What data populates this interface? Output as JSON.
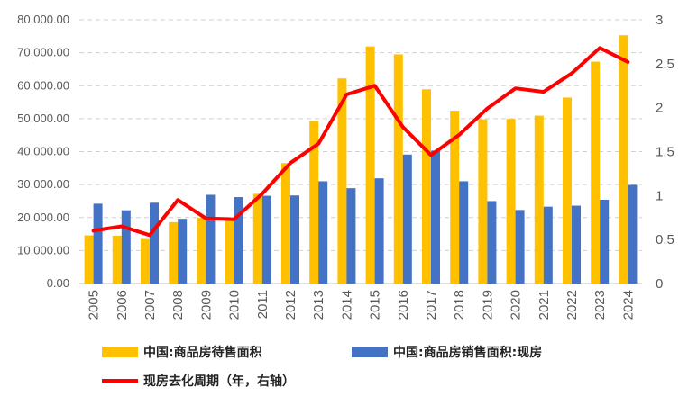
{
  "chart_data": {
    "type": "bar",
    "categories": [
      "2005",
      "2006",
      "2007",
      "2008",
      "2009",
      "2010",
      "2011",
      "2012",
      "2013",
      "2014",
      "2015",
      "2016",
      "2017",
      "2018",
      "2019",
      "2020",
      "2021",
      "2022",
      "2023",
      "2024"
    ],
    "series": [
      {
        "name": "中国:商品房待售面积",
        "type": "bar",
        "axis": "left",
        "color": "#FFC000",
        "values": [
          14600,
          14500,
          13500,
          18600,
          19900,
          19200,
          27200,
          36500,
          49300,
          62200,
          71900,
          69500,
          58900,
          52400,
          49800,
          49900,
          50900,
          56400,
          67300,
          75300
        ]
      },
      {
        "name": "中国:商品房销售面积:现房",
        "type": "bar",
        "axis": "left",
        "color": "#4472C4",
        "values": [
          24200,
          22200,
          24500,
          19600,
          26900,
          26200,
          26600,
          26700,
          31000,
          28900,
          31900,
          39100,
          40300,
          31000,
          25000,
          22300,
          23300,
          23600,
          25400,
          29900
        ]
      },
      {
        "name": "现房去化周期（年，右轴）",
        "type": "line",
        "axis": "right",
        "color": "#FF0000",
        "values": [
          0.6,
          0.65,
          0.55,
          0.95,
          0.74,
          0.73,
          1.02,
          1.37,
          1.59,
          2.15,
          2.25,
          1.78,
          1.46,
          1.69,
          1.99,
          2.22,
          2.18,
          2.39,
          2.68,
          2.52
        ]
      }
    ],
    "y_left": {
      "ylim": [
        0,
        80000
      ],
      "ticks": [
        "0.00",
        "10,000.00",
        "20,000.00",
        "30,000.00",
        "40,000.00",
        "50,000.00",
        "60,000.00",
        "70,000.00",
        "80,000.00"
      ]
    },
    "y_right": {
      "ylim": [
        0,
        3
      ],
      "ticks": [
        "0",
        "0.5",
        "1",
        "1.5",
        "2",
        "2.5",
        "3"
      ]
    },
    "grid": "horizontal-dashed",
    "legend_position": "bottom"
  }
}
